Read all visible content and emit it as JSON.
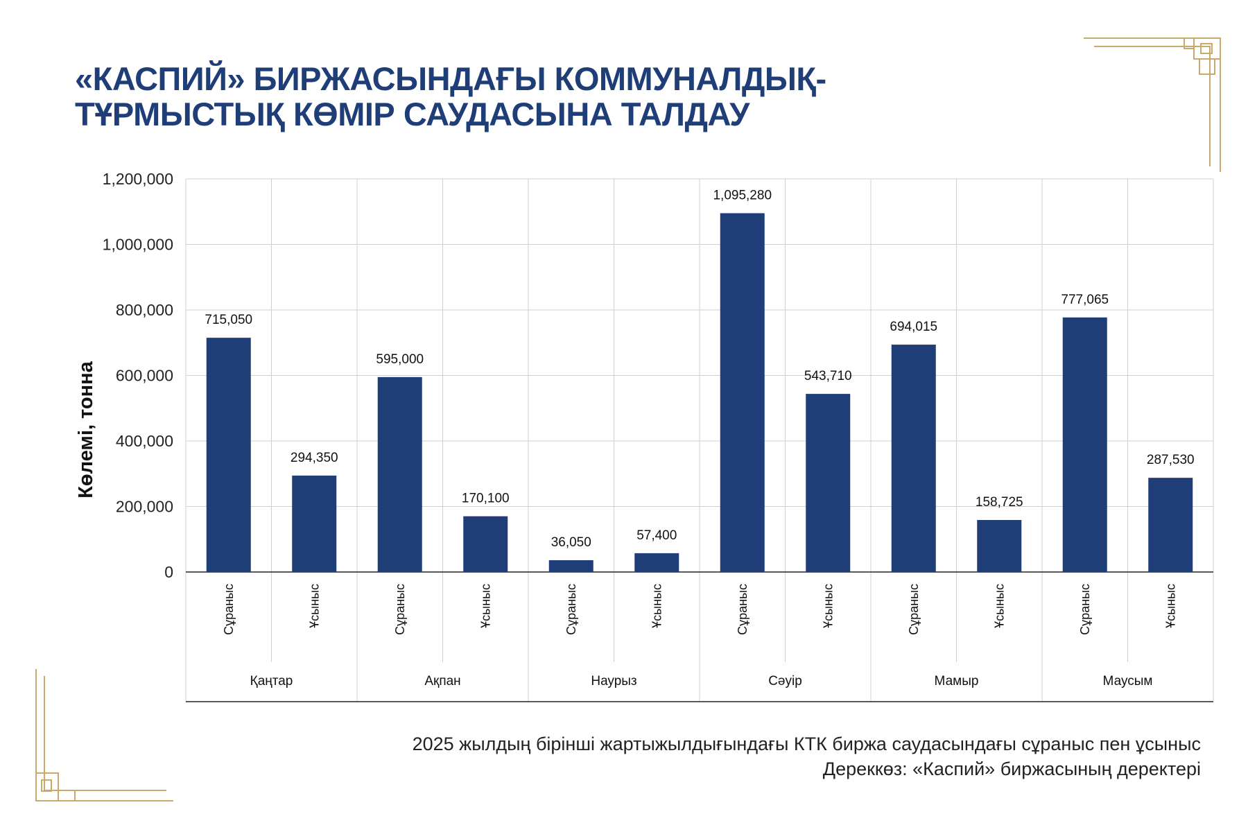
{
  "header": {
    "title_line1": "«КАСПИЙ» БИРЖАСЫНДАҒЫ КОММУНАЛДЫҚ-",
    "title_line2": "ТҰРМЫСТЫҚ КӨМІР САУДАСЫНА ТАЛДАУ"
  },
  "caption": {
    "line1": "2025 жылдың бірінші жартыжылдығындағы КТК биржа саудасындағы сұраныс пен ұсыныс",
    "line2": "Дереккөз: «Каспий» биржасының деректері"
  },
  "colors": {
    "bar": "#1f3e78",
    "title": "#1f3e78",
    "grid": "#d0d0d0",
    "ornament": "#c9a96a"
  },
  "chart_data": {
    "type": "bar",
    "ylabel": "Көлемі, тонна",
    "ylim": [
      0,
      1200000
    ],
    "yticks": [
      0,
      200000,
      400000,
      600000,
      800000,
      1000000,
      1200000
    ],
    "ytick_labels": [
      "0",
      "200,000",
      "400,000",
      "600,000",
      "800,000",
      "1,000,000",
      "1,200,000"
    ],
    "grid": true,
    "groups": [
      {
        "label": "Қаңтар",
        "bars": [
          {
            "label": "Сұраныс",
            "value": 715050,
            "value_label": "715,050"
          },
          {
            "label": "Ұсыныс",
            "value": 294350,
            "value_label": "294,350"
          }
        ]
      },
      {
        "label": "Ақпан",
        "bars": [
          {
            "label": "Сұраныс",
            "value": 595000,
            "value_label": "595,000"
          },
          {
            "label": "Ұсыныс",
            "value": 170100,
            "value_label": "170,100"
          }
        ]
      },
      {
        "label": "Наурыз",
        "bars": [
          {
            "label": "Сұраныс",
            "value": 36050,
            "value_label": "36,050"
          },
          {
            "label": "Ұсыныс",
            "value": 57400,
            "value_label": "57,400"
          }
        ]
      },
      {
        "label": "Сәуір",
        "bars": [
          {
            "label": "Сұраныс",
            "value": 1095280,
            "value_label": "1,095,280"
          },
          {
            "label": "Ұсыныс",
            "value": 543710,
            "value_label": "543,710"
          }
        ]
      },
      {
        "label": "Мамыр",
        "bars": [
          {
            "label": "Сұраныс",
            "value": 694015,
            "value_label": "694,015"
          },
          {
            "label": "Ұсыныс",
            "value": 158725,
            "value_label": "158,725"
          }
        ]
      },
      {
        "label": "Маусым",
        "bars": [
          {
            "label": "Сұраныс",
            "value": 777065,
            "value_label": "777,065"
          },
          {
            "label": "Ұсыныс",
            "value": 287530,
            "value_label": "287,530"
          }
        ]
      }
    ]
  }
}
